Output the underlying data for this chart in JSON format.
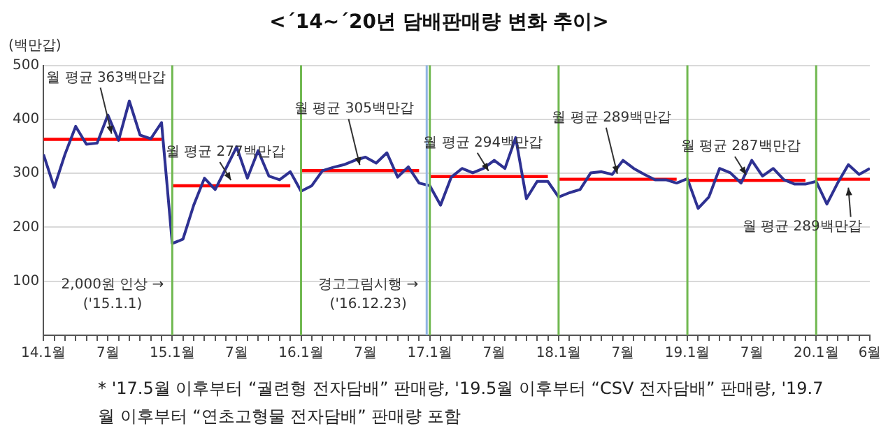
{
  "chart_data": {
    "type": "line",
    "title": "<´14~´20년 담배판매량 변화 추이>",
    "ylabel": "(백만갑)",
    "x": [
      "2014-01",
      "2014-02",
      "2014-03",
      "2014-04",
      "2014-05",
      "2014-06",
      "2014-07",
      "2014-08",
      "2014-09",
      "2014-10",
      "2014-11",
      "2014-12",
      "2015-01",
      "2015-02",
      "2015-03",
      "2015-04",
      "2015-05",
      "2015-06",
      "2015-07",
      "2015-08",
      "2015-09",
      "2015-10",
      "2015-11",
      "2015-12",
      "2016-01",
      "2016-02",
      "2016-03",
      "2016-04",
      "2016-05",
      "2016-06",
      "2016-07",
      "2016-08",
      "2016-09",
      "2016-10",
      "2016-11",
      "2016-12",
      "2017-01",
      "2017-02",
      "2017-03",
      "2017-04",
      "2017-05",
      "2017-06",
      "2017-07",
      "2017-08",
      "2017-09",
      "2017-10",
      "2017-11",
      "2017-12",
      "2018-01",
      "2018-02",
      "2018-03",
      "2018-04",
      "2018-05",
      "2018-06",
      "2018-07",
      "2018-08",
      "2018-09",
      "2018-10",
      "2018-11",
      "2018-12",
      "2019-01",
      "2019-02",
      "2019-03",
      "2019-04",
      "2019-05",
      "2019-06",
      "2019-07",
      "2019-08",
      "2019-09",
      "2019-10",
      "2019-11",
      "2019-12",
      "2020-01",
      "2020-02",
      "2020-03",
      "2020-04",
      "2020-05",
      "2020-06"
    ],
    "series": [
      {
        "color": "#2e3192",
        "values": [
          335,
          274,
          335,
          387,
          354,
          356,
          408,
          361,
          434,
          371,
          364,
          394,
          170,
          178,
          241,
          291,
          270,
          309,
          349,
          291,
          342,
          295,
          288,
          303,
          267,
          277,
          305,
          311,
          316,
          324,
          330,
          319,
          338,
          293,
          312,
          282,
          277,
          241,
          293,
          309,
          301,
          309,
          324,
          309,
          366,
          253,
          285,
          285,
          256,
          264,
          270,
          301,
          303,
          298,
          324,
          309,
          298,
          288,
          288,
          282,
          290,
          235,
          256,
          309,
          301,
          282,
          324,
          295,
          309,
          288,
          280,
          280,
          285,
          243,
          282,
          316,
          298,
          309
        ]
      },
      {
        "name": "월 평균 363백만갑",
        "color": "#ff0000",
        "x": [
          "2014-01",
          "2014-12"
        ],
        "values": [
          363,
          363
        ]
      },
      {
        "name": "월 평균 277백만갑",
        "color": "#ff0000",
        "x": [
          "2015-01",
          "2015-12"
        ],
        "values": [
          277,
          277
        ]
      },
      {
        "name": "월 평균 305백만갑",
        "color": "#ff0000",
        "x": [
          "2016-01",
          "2016-12"
        ],
        "values": [
          305,
          305
        ]
      },
      {
        "name": "월 평균 294백만갑",
        "color": "#ff0000",
        "x": [
          "2017-01",
          "2017-12"
        ],
        "values": [
          294,
          294
        ]
      },
      {
        "name": "월 평균 289백만갑",
        "color": "#ff0000",
        "x": [
          "2018-01",
          "2018-12"
        ],
        "values": [
          289,
          289
        ]
      },
      {
        "name": "월 평균 287백만갑",
        "color": "#ff0000",
        "x": [
          "2019-01",
          "2019-12"
        ],
        "values": [
          287,
          287
        ]
      },
      {
        "name": "월 평균 289백만갑",
        "color": "#ff0000",
        "x": [
          "2020-01",
          "2020-06"
        ],
        "values": [
          289,
          289
        ]
      }
    ],
    "xlim": [
      "2014-01",
      "2020-06"
    ],
    "xticks": [
      {
        "value": "2014-01",
        "label": "14.1월"
      },
      {
        "value": "2014-07",
        "label": "7월"
      },
      {
        "value": "2015-01",
        "label": "15.1월"
      },
      {
        "value": "2015-07",
        "label": "7월"
      },
      {
        "value": "2016-01",
        "label": "16.1월"
      },
      {
        "value": "2016-07",
        "label": "7월"
      },
      {
        "value": "2017-01",
        "label": "17.1월"
      },
      {
        "value": "2017-07",
        "label": "7월"
      },
      {
        "value": "2018-01",
        "label": "18.1월"
      },
      {
        "value": "2018-07",
        "label": "7월"
      },
      {
        "value": "2019-01",
        "label": "19.1월"
      },
      {
        "value": "2019-07",
        "label": "7월"
      },
      {
        "value": "2020-01",
        "label": "20.1월"
      },
      {
        "value": "2020-06",
        "label": "6월"
      }
    ],
    "ylim": [
      0,
      500
    ],
    "yticks": [
      {
        "value": 0,
        "label": null
      },
      100,
      200,
      300,
      400,
      500
    ],
    "grid": "y",
    "legend": false,
    "marker": "none",
    "ref_lines": [
      {
        "axis": "x",
        "value": "2015-01",
        "color": "#70b850",
        "label": "2,000원 인상 →\n('15.1.1)"
      },
      {
        "axis": "x",
        "value": "2016-01",
        "color": "#70b850"
      },
      {
        "axis": "x",
        "value": "2016-12-23",
        "color": "#8fb4e3",
        "label": "경고그림시행 →\n('16.12.23)"
      },
      {
        "axis": "x",
        "value": "2017-01",
        "color": "#70b850"
      },
      {
        "axis": "x",
        "value": "2018-01",
        "color": "#70b850"
      },
      {
        "axis": "x",
        "value": "2019-01",
        "color": "#70b850"
      },
      {
        "axis": "x",
        "value": "2020-01",
        "color": "#70b850"
      }
    ],
    "annotations": [
      "* '17.5월 이후부터 “궐련형 전자담배” 판매량, '19.5월 이후부터 “CSV 전자담배” 판매량, '19.7월 이후부터 “연초고형물 전자담배” 판매량 포함"
    ]
  }
}
